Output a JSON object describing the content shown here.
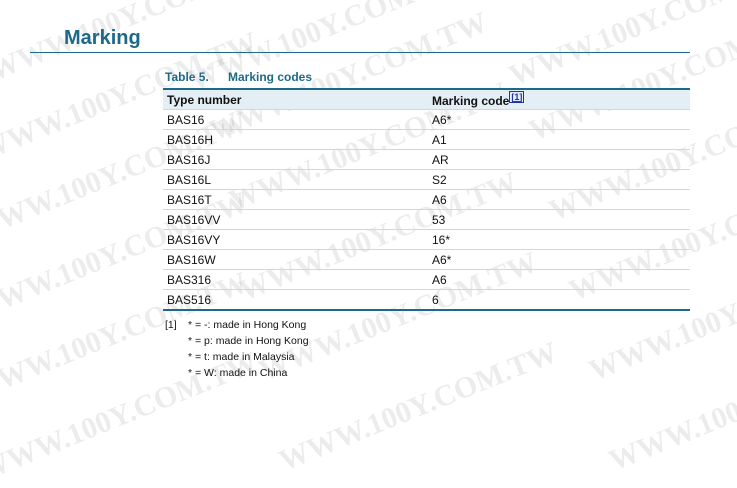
{
  "heading": "Marking",
  "watermark": "WWW.100Y.COM.TW",
  "table": {
    "number": "Table 5.",
    "title": "Marking codes",
    "headers": [
      "Type number",
      "Marking code"
    ],
    "header_ref": "[1]",
    "rows": [
      [
        "BAS16",
        "A6*"
      ],
      [
        "BAS16H",
        "A1"
      ],
      [
        "BAS16J",
        "AR"
      ],
      [
        "BAS16L",
        "S2"
      ],
      [
        "BAS16T",
        "A6"
      ],
      [
        "BAS16VV",
        "53"
      ],
      [
        "BAS16VY",
        "16*"
      ],
      [
        "BAS16W",
        "A6*"
      ],
      [
        "BAS316",
        "A6"
      ],
      [
        "BAS516",
        "6"
      ]
    ]
  },
  "footnote": {
    "ref": "[1]",
    "lines": [
      "* = -: made in Hong Kong",
      "* = p: made in Hong Kong",
      "* = t: made in Malaysia",
      "* = W: made in China"
    ]
  },
  "colors": {
    "accent": "#1d6a88",
    "header_bg": "#e4eff5"
  }
}
